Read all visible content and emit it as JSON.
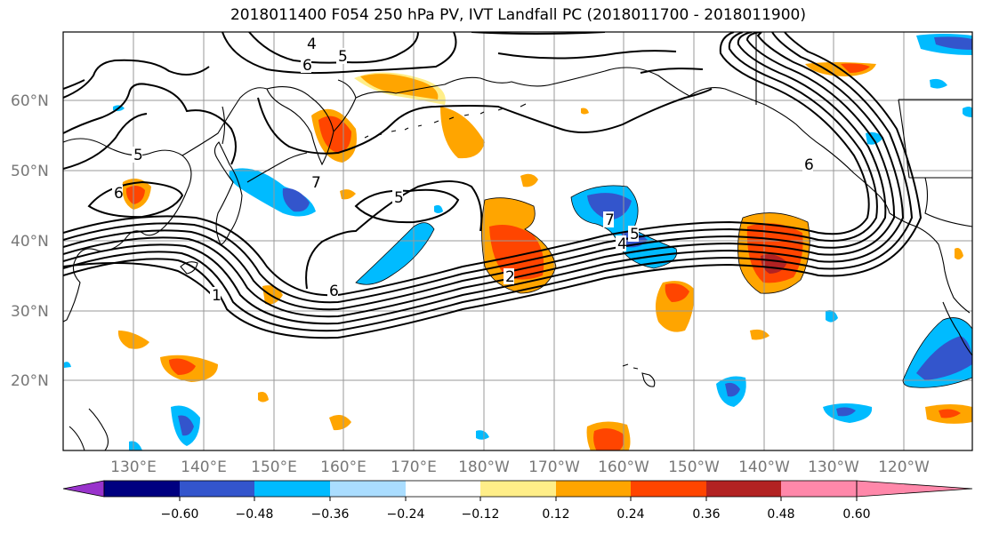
{
  "title": "2018011400 F054 250 hPa PV, IVT Landfall PC (2018011700 - 2018011900)",
  "lat_labels": [
    "60°N",
    "50°N",
    "40°N",
    "30°N",
    "20°N"
  ],
  "lon_labels": [
    "130°E",
    "140°E",
    "150°E",
    "160°E",
    "170°E",
    "180°W",
    "170°W",
    "160°W",
    "150°W",
    "140°W",
    "130°W",
    "120°W"
  ],
  "colorbar": {
    "colors": [
      "#9933cc",
      "#000080",
      "#3355cc",
      "#00bbff",
      "#aaddff",
      "#ffffff",
      "#ffee88",
      "#ffa500",
      "#ff4500",
      "#b22222",
      "#ff88aa"
    ],
    "tick_labels": [
      "−0.60",
      "−0.48",
      "−0.36",
      "−0.24",
      "−0.12",
      "0.12",
      "0.24",
      "0.36",
      "0.48",
      "0.60"
    ]
  },
  "contour_labels": [
    "4",
    "5",
    "6",
    "5",
    "6",
    "7",
    "5",
    "6",
    "1",
    "2",
    "7",
    "4",
    "5",
    "6"
  ]
}
